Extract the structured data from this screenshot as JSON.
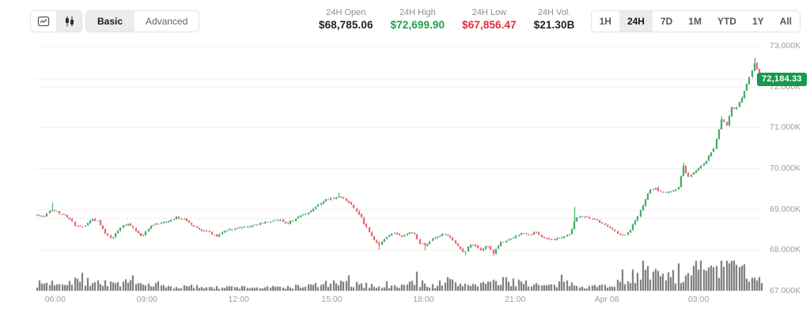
{
  "toolbar": {
    "chart_type": {
      "line_icon": "line-chart-icon",
      "candle_icon": "candlestick-icon",
      "selected": "candlestick"
    },
    "basic_label": "Basic",
    "advanced_label": "Advanced",
    "mode_selected": "Basic"
  },
  "stats": [
    {
      "label": "24H Open",
      "value": "$68,785.06",
      "color": "#1f2023"
    },
    {
      "label": "24H High",
      "value": "$72,699.90",
      "color": "#16a34a"
    },
    {
      "label": "24H Low",
      "value": "$67,856.47",
      "color": "#e02a3c"
    },
    {
      "label": "24H Vol.",
      "value": "$21.30B",
      "color": "#1f2023"
    }
  ],
  "ranges": {
    "options": [
      "1H",
      "24H",
      "7D",
      "1M",
      "YTD",
      "1Y",
      "All"
    ],
    "selected": "24H"
  },
  "chart_data": {
    "type": "candlestick+volume",
    "instrument_stats": {
      "open": 68785.06,
      "high": 72699.9,
      "low": 67856.47,
      "volume": "21.30B"
    },
    "last_price": 72184.33,
    "last_price_label": "72,184.33",
    "candle_count": 287,
    "y_axis": {
      "labels": [
        "73.000K",
        "72.000K",
        "71.000K",
        "70.000K",
        "69.000K",
        "68.000K",
        "67.000K"
      ],
      "prices": [
        73000,
        72000,
        71000,
        70000,
        69000,
        68000,
        67000
      ],
      "top_price": 73212,
      "bottom_price": 67000,
      "grid": true
    },
    "x_axis": {
      "labels": [
        {
          "text": "06:00",
          "f": 0.027
        },
        {
          "text": "09:00",
          "f": 0.153
        },
        {
          "text": "12:00",
          "f": 0.279
        },
        {
          "text": "15:00",
          "f": 0.407
        },
        {
          "text": "18:00",
          "f": 0.533
        },
        {
          "text": "21:00",
          "f": 0.659
        },
        {
          "text": "Apr 08",
          "f": 0.785
        },
        {
          "text": "03:00",
          "f": 0.911
        }
      ]
    },
    "price_path": [
      [
        0.0,
        68850
      ],
      [
        0.0109,
        68820
      ],
      [
        0.0196,
        69000
      ],
      [
        0.0294,
        68930
      ],
      [
        0.0436,
        68780
      ],
      [
        0.0545,
        68580
      ],
      [
        0.0654,
        68560
      ],
      [
        0.0741,
        68750
      ],
      [
        0.0839,
        68700
      ],
      [
        0.0959,
        68360
      ],
      [
        0.1035,
        68280
      ],
      [
        0.1144,
        68550
      ],
      [
        0.1253,
        68650
      ],
      [
        0.1362,
        68480
      ],
      [
        0.1449,
        68330
      ],
      [
        0.158,
        68600
      ],
      [
        0.1689,
        68650
      ],
      [
        0.1819,
        68700
      ],
      [
        0.1906,
        68800
      ],
      [
        0.2037,
        68750
      ],
      [
        0.2146,
        68600
      ],
      [
        0.2255,
        68500
      ],
      [
        0.2364,
        68450
      ],
      [
        0.2473,
        68330
      ],
      [
        0.2582,
        68450
      ],
      [
        0.2723,
        68520
      ],
      [
        0.2887,
        68560
      ],
      [
        0.305,
        68630
      ],
      [
        0.3213,
        68700
      ],
      [
        0.3344,
        68740
      ],
      [
        0.3453,
        68650
      ],
      [
        0.3595,
        68800
      ],
      [
        0.3736,
        68900
      ],
      [
        0.3867,
        69080
      ],
      [
        0.3976,
        69230
      ],
      [
        0.4085,
        69270
      ],
      [
        0.4172,
        69320
      ],
      [
        0.4259,
        69230
      ],
      [
        0.4357,
        69050
      ],
      [
        0.4466,
        68800
      ],
      [
        0.4575,
        68450
      ],
      [
        0.4651,
        68250
      ],
      [
        0.4717,
        68120
      ],
      [
        0.4815,
        68300
      ],
      [
        0.4924,
        68420
      ],
      [
        0.5033,
        68330
      ],
      [
        0.5131,
        68430
      ],
      [
        0.5207,
        68380
      ],
      [
        0.5283,
        68150
      ],
      [
        0.5359,
        68100
      ],
      [
        0.5447,
        68250
      ],
      [
        0.5534,
        68320
      ],
      [
        0.561,
        68400
      ],
      [
        0.5719,
        68270
      ],
      [
        0.5828,
        68050
      ],
      [
        0.5893,
        67920
      ],
      [
        0.597,
        68150
      ],
      [
        0.6057,
        68080
      ],
      [
        0.6133,
        67990
      ],
      [
        0.6209,
        68120
      ],
      [
        0.6296,
        67920
      ],
      [
        0.6394,
        68180
      ],
      [
        0.6514,
        68250
      ],
      [
        0.6612,
        68350
      ],
      [
        0.6699,
        68420
      ],
      [
        0.6786,
        68380
      ],
      [
        0.6884,
        68430
      ],
      [
        0.6983,
        68300
      ],
      [
        0.7081,
        68250
      ],
      [
        0.7168,
        68280
      ],
      [
        0.7266,
        68330
      ],
      [
        0.7353,
        68400
      ],
      [
        0.7429,
        68780
      ],
      [
        0.7527,
        68820
      ],
      [
        0.7625,
        68780
      ],
      [
        0.7734,
        68720
      ],
      [
        0.7821,
        68620
      ],
      [
        0.7919,
        68520
      ],
      [
        0.8007,
        68400
      ],
      [
        0.8094,
        68330
      ],
      [
        0.8181,
        68500
      ],
      [
        0.8268,
        68780
      ],
      [
        0.8355,
        69080
      ],
      [
        0.8442,
        69440
      ],
      [
        0.8529,
        69520
      ],
      [
        0.8617,
        69400
      ],
      [
        0.8704,
        69420
      ],
      [
        0.878,
        69450
      ],
      [
        0.8845,
        69520
      ],
      [
        0.8911,
        70080
      ],
      [
        0.8976,
        69780
      ],
      [
        0.9041,
        69850
      ],
      [
        0.9107,
        70000
      ],
      [
        0.9183,
        70060
      ],
      [
        0.9259,
        70280
      ],
      [
        0.9335,
        70480
      ],
      [
        0.9401,
        70900
      ],
      [
        0.9444,
        71230
      ],
      [
        0.951,
        71050
      ],
      [
        0.9575,
        71500
      ],
      [
        0.9641,
        71450
      ],
      [
        0.9706,
        71680
      ],
      [
        0.9771,
        71950
      ],
      [
        0.9837,
        72280
      ],
      [
        0.9891,
        72600
      ],
      [
        0.9924,
        72500
      ],
      [
        0.9956,
        72250
      ],
      [
        0.9978,
        72120
      ],
      [
        1.0,
        72184.33
      ]
    ],
    "wick_events": [
      {
        "f": 0.0196,
        "high": 69160
      },
      {
        "f": 0.4172,
        "high": 69390
      },
      {
        "f": 0.4717,
        "low": 68000
      },
      {
        "f": 0.5359,
        "low": 67980
      },
      {
        "f": 0.5893,
        "low": 67870
      },
      {
        "f": 0.6296,
        "low": 67856.47
      },
      {
        "f": 0.7429,
        "high": 69060
      },
      {
        "f": 0.8911,
        "high": 70130
      },
      {
        "f": 0.9444,
        "high": 71280
      },
      {
        "f": 0.9891,
        "high": 72699.9
      }
    ],
    "volume_path": [
      [
        0.0,
        0.22
      ],
      [
        0.02,
        0.26
      ],
      [
        0.045,
        0.3
      ],
      [
        0.052,
        0.42
      ],
      [
        0.06,
        0.25
      ],
      [
        0.08,
        0.3
      ],
      [
        0.1,
        0.22
      ],
      [
        0.12,
        0.26
      ],
      [
        0.14,
        0.2
      ],
      [
        0.16,
        0.18
      ],
      [
        0.19,
        0.12
      ],
      [
        0.22,
        0.14
      ],
      [
        0.25,
        0.1
      ],
      [
        0.28,
        0.12
      ],
      [
        0.31,
        0.1
      ],
      [
        0.34,
        0.12
      ],
      [
        0.37,
        0.15
      ],
      [
        0.39,
        0.2
      ],
      [
        0.41,
        0.24
      ],
      [
        0.43,
        0.22
      ],
      [
        0.45,
        0.18
      ],
      [
        0.47,
        0.16
      ],
      [
        0.49,
        0.12
      ],
      [
        0.51,
        0.2
      ],
      [
        0.52,
        0.28
      ],
      [
        0.535,
        0.22
      ],
      [
        0.55,
        0.16
      ],
      [
        0.565,
        0.35
      ],
      [
        0.58,
        0.2
      ],
      [
        0.6,
        0.22
      ],
      [
        0.615,
        0.26
      ],
      [
        0.63,
        0.24
      ],
      [
        0.645,
        0.3
      ],
      [
        0.66,
        0.32
      ],
      [
        0.675,
        0.28
      ],
      [
        0.69,
        0.18
      ],
      [
        0.71,
        0.15
      ],
      [
        0.73,
        0.25
      ],
      [
        0.745,
        0.2
      ],
      [
        0.76,
        0.16
      ],
      [
        0.775,
        0.14
      ],
      [
        0.79,
        0.2
      ],
      [
        0.8,
        0.24
      ],
      [
        0.815,
        0.35
      ],
      [
        0.825,
        0.55
      ],
      [
        0.835,
        0.82
      ],
      [
        0.845,
        0.45
      ],
      [
        0.855,
        0.5
      ],
      [
        0.865,
        0.72
      ],
      [
        0.875,
        0.45
      ],
      [
        0.885,
        0.55
      ],
      [
        0.895,
        0.4
      ],
      [
        0.905,
        0.55
      ],
      [
        0.915,
        0.95
      ],
      [
        0.925,
        0.6
      ],
      [
        0.935,
        0.7
      ],
      [
        0.945,
        0.85
      ],
      [
        0.955,
        1.0
      ],
      [
        0.965,
        0.8
      ],
      [
        0.975,
        0.65
      ],
      [
        0.985,
        0.55
      ],
      [
        1.0,
        0.45
      ]
    ],
    "colors": {
      "candle_up": "#26a152",
      "candle_down": "#e4515c",
      "volume_bar": "#6f6f6f",
      "grid_line": "#f0f0f1",
      "open_line": "#d9d9db",
      "last_price_line": "#e3e3e5",
      "badge_bg": "#17994f",
      "axis_text": "#9b9da1"
    },
    "legend_position": "none",
    "title": ""
  }
}
